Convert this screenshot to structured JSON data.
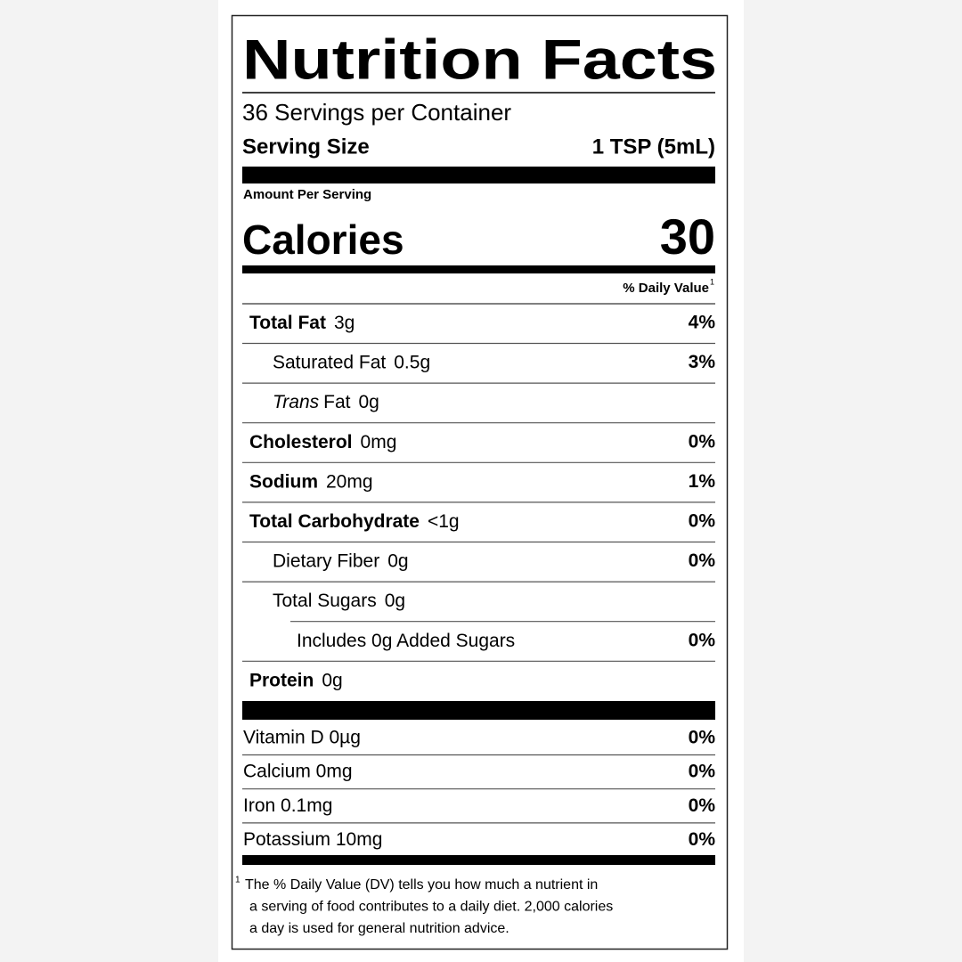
{
  "title": "Nutrition Facts",
  "servings": "36 Servings per Container",
  "serving_size": {
    "label": "Serving Size",
    "value": "1 TSP (5mL)"
  },
  "amount_per_serving": "Amount Per Serving",
  "calories": {
    "label": "Calories",
    "value": "30"
  },
  "daily_value_header": {
    "text": "% Daily Value",
    "note": "1"
  },
  "nutrients": [
    {
      "name": "Total Fat",
      "amount": "3g",
      "dv": "4%",
      "indent": 0,
      "bold": true
    },
    {
      "name": "Saturated Fat",
      "amount": "0.5g",
      "dv": "3%",
      "indent": 1,
      "bold": false
    },
    {
      "name_italic": "Trans",
      "name": "Fat",
      "amount": "0g",
      "indent": 1,
      "bold": false
    },
    {
      "name": "Cholesterol",
      "amount": "0mg",
      "dv": "0%",
      "indent": 0,
      "bold": true
    },
    {
      "name": "Sodium",
      "amount": "20mg",
      "dv": "1%",
      "indent": 0,
      "bold": true
    },
    {
      "name": "Total Carbohydrate",
      "amount": "<1g",
      "dv": "0%",
      "indent": 0,
      "bold": true
    },
    {
      "name": "Dietary Fiber",
      "amount": "0g",
      "dv": "0%",
      "indent": 1,
      "bold": false
    },
    {
      "name": "Total Sugars",
      "amount": "0g",
      "indent": 1,
      "bold": false
    },
    {
      "name": "Includes 0g Added Sugars",
      "dv": "0%",
      "indent": 2,
      "bold": false
    },
    {
      "name": "Protein",
      "amount": "0g",
      "indent": 0,
      "bold": true
    }
  ],
  "vitamins": [
    {
      "name": "Vitamin D 0µg",
      "dv": "0%"
    },
    {
      "name": "Calcium 0mg",
      "dv": "0%"
    },
    {
      "name": "Iron 0.1mg",
      "dv": "0%"
    },
    {
      "name": "Potassium 10mg",
      "dv": "0%"
    }
  ],
  "footnote": {
    "mark": "1",
    "lines": [
      "The % Daily Value (DV) tells you how much a nutrient in",
      "a serving of food contributes to a daily diet. 2,000 calories",
      "a day is used for general nutrition advice."
    ]
  }
}
